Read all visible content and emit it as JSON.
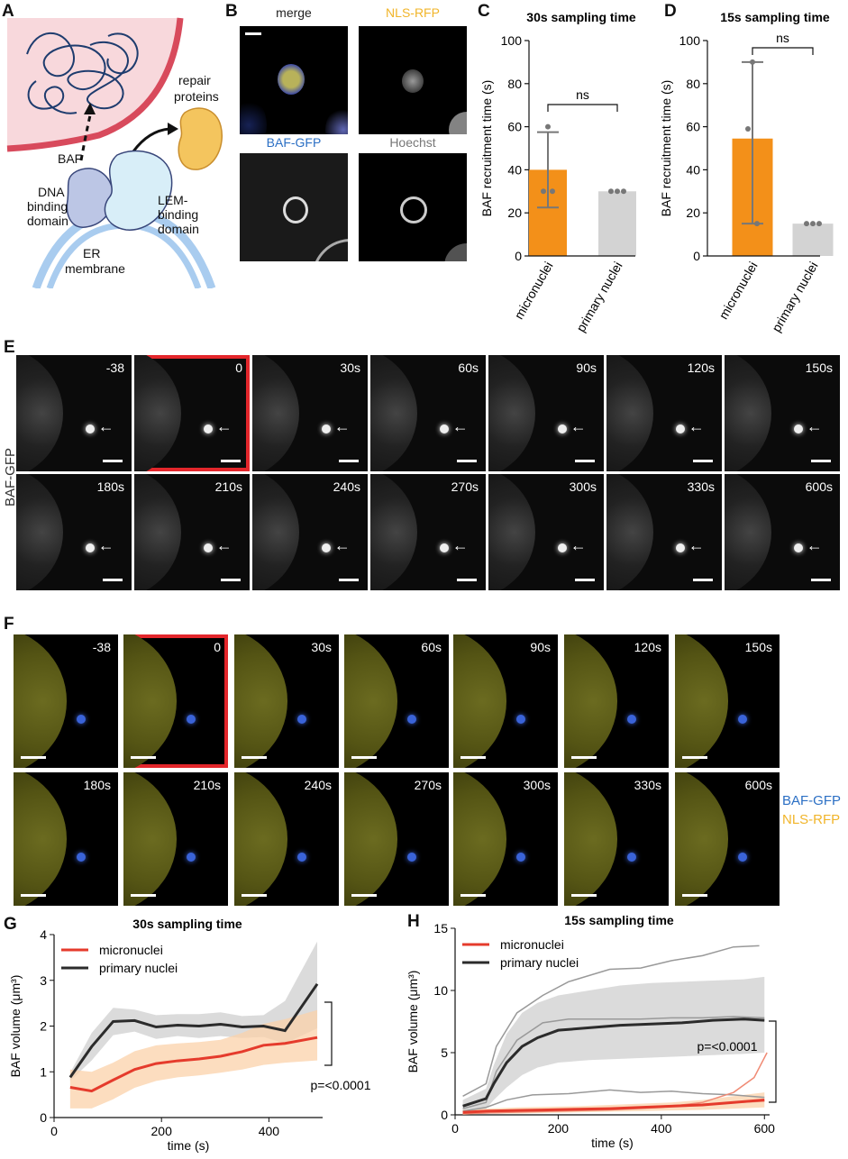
{
  "panels": {
    "A": {
      "letter": "A",
      "labels": {
        "repair": "repair",
        "proteins": "proteins",
        "baf": "BAF",
        "dna1": "DNA",
        "dna2": "binding",
        "dna3": "domain",
        "lem1": "LEM-",
        "lem2": "binding",
        "lem3": "domain",
        "er1": "ER",
        "er2": "membrane"
      }
    },
    "B": {
      "letter": "B",
      "titles": {
        "merge": "merge",
        "nls": "NLS-RFP",
        "baf": "BAF-GFP",
        "hoechst": "Hoechst"
      }
    },
    "C": {
      "letter": "C"
    },
    "D": {
      "letter": "D"
    },
    "E": {
      "letter": "E",
      "row_label": "BAF-GFP",
      "row1": [
        "-38",
        "0",
        "30s",
        "60s",
        "90s",
        "120s",
        "150s"
      ],
      "row2": [
        "180s",
        "210s",
        "240s",
        "270s",
        "300s",
        "330s",
        "600s"
      ]
    },
    "F": {
      "letter": "F",
      "row1": [
        "-38",
        "0",
        "30s",
        "60s",
        "90s",
        "120s",
        "150s"
      ],
      "row2": [
        "180s",
        "210s",
        "240s",
        "270s",
        "300s",
        "330s",
        "600s"
      ],
      "legend_baf": "BAF-GFP",
      "legend_nls": "NLS-RFP"
    },
    "G": {
      "letter": "G"
    },
    "H": {
      "letter": "H"
    }
  },
  "colors": {
    "orange": "#f39019",
    "gray_bar": "#d3d3d3",
    "blue_label": "#2b6fc4",
    "yellow_label": "#f1b52a",
    "red_line": "#e53b2c",
    "red_frame": "#e3262b"
  },
  "chart_data": [
    {
      "id": "C",
      "type": "bar",
      "title": "30s sampling time",
      "ylabel": "BAF recruitment time (s)",
      "categories": [
        "micronuclei",
        "primary nuclei"
      ],
      "values": [
        40,
        30
      ],
      "error": [
        [
          22.5,
          57.5
        ],
        null
      ],
      "points": [
        [
          60,
          30,
          30
        ],
        [
          30,
          30,
          30
        ]
      ],
      "ylim": [
        0,
        100
      ],
      "yticks": [
        "0",
        "20",
        "40",
        "60",
        "80",
        "100"
      ],
      "significance": "ns"
    },
    {
      "id": "D",
      "type": "bar",
      "title": "15s sampling time",
      "ylabel": "BAF recruitment time (s)",
      "categories": [
        "micronuclei",
        "primary nuclei"
      ],
      "values": [
        54.5,
        15
      ],
      "error": [
        [
          15,
          90
        ],
        null
      ],
      "points": [
        [
          90,
          59,
          15
        ],
        [
          15,
          15,
          15
        ]
      ],
      "ylim": [
        0,
        100
      ],
      "yticks": [
        "0",
        "20",
        "40",
        "60",
        "80",
        "100"
      ],
      "significance": "ns"
    },
    {
      "id": "G",
      "type": "line",
      "title": "30s sampling time",
      "xlabel": "time (s)",
      "ylabel": "BAF volume (μm³)",
      "xlim": [
        0,
        500
      ],
      "ylim": [
        0,
        4
      ],
      "xticks": [
        "0",
        "200",
        "400"
      ],
      "yticks": [
        "0",
        "1",
        "2",
        "3",
        "4"
      ],
      "annotation": "p=<0.0001",
      "series": [
        {
          "name": "micronuclei",
          "x": [
            30,
            70,
            110,
            150,
            190,
            230,
            270,
            310,
            350,
            390,
            430,
            490
          ],
          "y": [
            0.66,
            0.58,
            0.82,
            1.05,
            1.18,
            1.24,
            1.28,
            1.34,
            1.44,
            1.58,
            1.62,
            1.75
          ],
          "lower": [
            0.2,
            0.2,
            0.4,
            0.65,
            0.8,
            0.88,
            0.92,
            0.98,
            1.05,
            1.15,
            1.2,
            1.25
          ],
          "upper": [
            1.05,
            1.0,
            1.2,
            1.45,
            1.58,
            1.62,
            1.65,
            1.7,
            1.85,
            2.05,
            2.15,
            2.35
          ]
        },
        {
          "name": "primary nuclei",
          "x": [
            30,
            70,
            110,
            150,
            190,
            230,
            270,
            310,
            350,
            390,
            430,
            490
          ],
          "y": [
            0.88,
            1.55,
            2.1,
            2.12,
            1.98,
            2.02,
            2.0,
            2.04,
            1.98,
            2.0,
            1.9,
            2.92
          ],
          "lower": [
            0.8,
            1.25,
            1.8,
            1.88,
            1.72,
            1.78,
            1.74,
            1.78,
            1.74,
            1.76,
            1.62,
            1.95
          ],
          "upper": [
            0.98,
            1.85,
            2.4,
            2.36,
            2.24,
            2.26,
            2.26,
            2.3,
            2.22,
            2.24,
            2.55,
            3.85
          ]
        }
      ]
    },
    {
      "id": "H",
      "type": "line",
      "title": "15s sampling time",
      "xlabel": "time (s)",
      "ylabel": "BAF volume (μm³)",
      "xlim": [
        0,
        610
      ],
      "ylim": [
        0,
        15
      ],
      "xticks": [
        "0",
        "200",
        "400",
        "600"
      ],
      "yticks": [
        "0",
        "5",
        "10",
        "15"
      ],
      "annotation": "p=<0.0001",
      "series": [
        {
          "name": "micronuclei",
          "x": [
            15,
            60,
            120,
            180,
            240,
            300,
            360,
            420,
            480,
            540,
            600
          ],
          "y": [
            0.2,
            0.3,
            0.35,
            0.4,
            0.45,
            0.5,
            0.6,
            0.7,
            0.8,
            1.0,
            1.2
          ],
          "lower": [
            0.0,
            0.1,
            0.1,
            0.15,
            0.2,
            0.25,
            0.3,
            0.35,
            0.4,
            0.5,
            0.6
          ],
          "upper": [
            0.4,
            0.5,
            0.6,
            0.65,
            0.7,
            0.8,
            0.9,
            1.0,
            1.2,
            1.5,
            1.8
          ]
        },
        {
          "name": "primary nuclei",
          "x": [
            15,
            60,
            75,
            100,
            130,
            160,
            200,
            260,
            320,
            380,
            440,
            500,
            560,
            600
          ],
          "y": [
            0.7,
            1.3,
            2.5,
            4.2,
            5.5,
            6.2,
            6.8,
            7.0,
            7.2,
            7.3,
            7.4,
            7.6,
            7.7,
            7.6
          ],
          "lower": [
            0.2,
            0.5,
            1.2,
            2.2,
            3.2,
            3.8,
            4.2,
            4.4,
            4.5,
            4.6,
            4.7,
            4.8,
            4.9,
            5.0
          ],
          "upper": [
            1.2,
            2.1,
            4.0,
            6.5,
            8.2,
            9.0,
            9.6,
            10.0,
            10.4,
            10.6,
            10.7,
            10.8,
            10.9,
            11.1
          ]
        }
      ],
      "individual_traces_gray": [
        {
          "x": [
            15,
            60,
            80,
            120,
            170,
            220,
            300,
            360,
            420,
            480,
            540,
            590
          ],
          "y": [
            1.5,
            2.5,
            5.5,
            8.2,
            9.6,
            10.7,
            11.7,
            11.8,
            12.4,
            12.8,
            13.5,
            13.6
          ]
        },
        {
          "x": [
            15,
            60,
            80,
            120,
            170,
            220,
            300,
            360,
            420,
            480,
            540,
            600
          ],
          "y": [
            0.5,
            1.0,
            3.5,
            6.0,
            7.4,
            7.7,
            7.7,
            7.7,
            7.8,
            7.8,
            7.9,
            7.8
          ]
        },
        {
          "x": [
            15,
            60,
            100,
            150,
            220,
            300,
            360,
            420,
            480,
            540,
            600
          ],
          "y": [
            0.3,
            0.6,
            1.2,
            1.6,
            1.7,
            2.0,
            1.8,
            1.9,
            1.7,
            1.6,
            1.4
          ]
        }
      ],
      "individual_traces_red": [
        {
          "x": [
            15,
            100,
            200,
            300,
            400,
            480,
            540,
            580,
            605
          ],
          "y": [
            0.1,
            0.2,
            0.3,
            0.4,
            0.6,
            1.0,
            1.8,
            3.0,
            5.0
          ]
        },
        {
          "x": [
            15,
            100,
            200,
            300,
            400,
            500,
            600
          ],
          "y": [
            0.1,
            0.2,
            0.4,
            0.5,
            0.7,
            0.9,
            1.1
          ]
        }
      ]
    }
  ]
}
